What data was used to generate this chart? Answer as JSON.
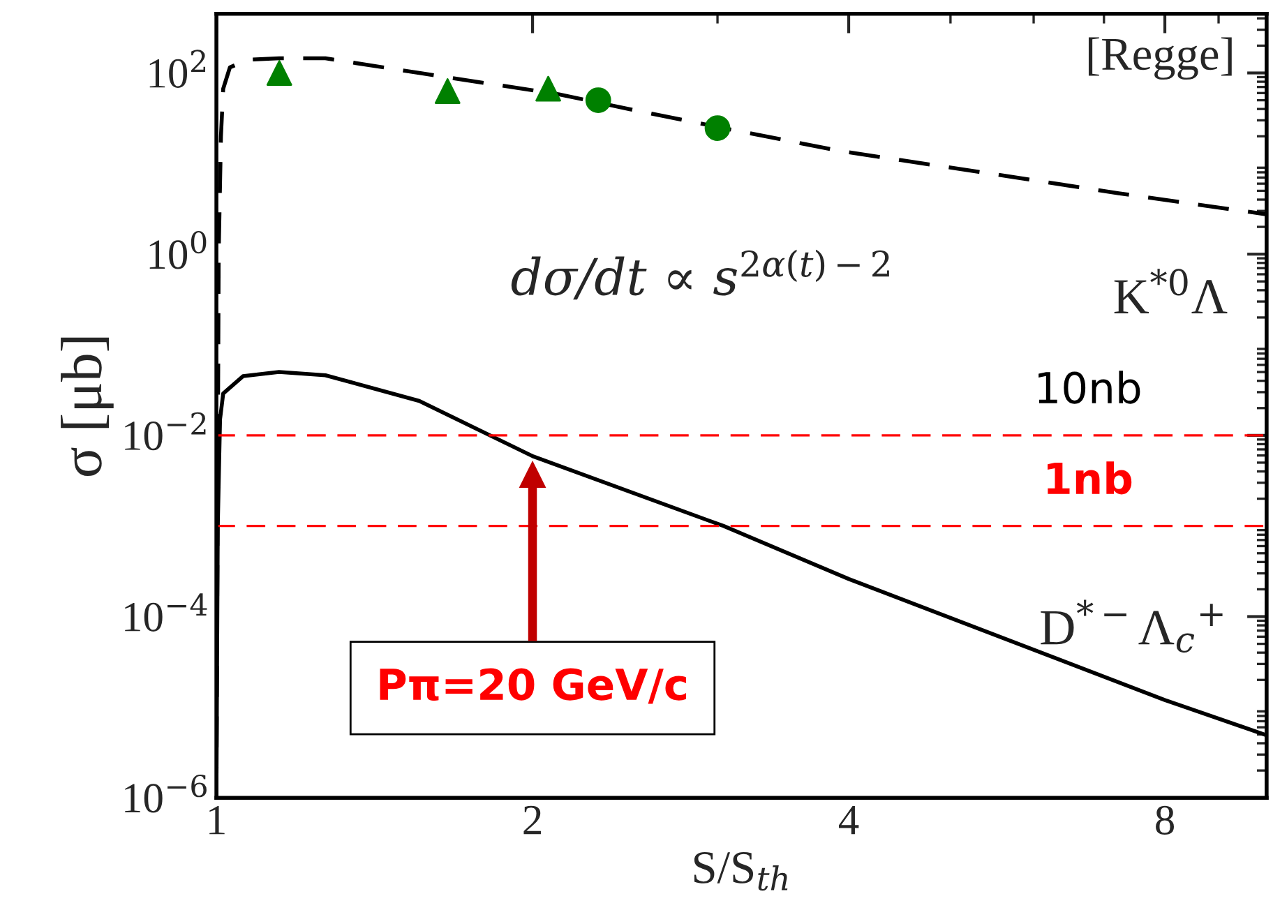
{
  "chart_data": {
    "type": "line",
    "xlabel": "S/S$_{th}$",
    "ylabel": "σ [μb]",
    "log": "xy",
    "grid": false,
    "legend": false,
    "xlim": [
      1,
      10
    ],
    "xticks": [
      1,
      2,
      4,
      8
    ],
    "ylim": [
      1e-06,
      450
    ],
    "yticks": [
      {
        "value": 1e-06,
        "label": "10$^{−6}$"
      },
      {
        "value": 0.0001,
        "label": "10$^{−4}$"
      },
      {
        "value": 0.01,
        "label": "10$^{−2}$"
      },
      {
        "value": 1,
        "label": "10$^{0}$"
      },
      {
        "value": 100,
        "label": "10$^{2}$"
      }
    ],
    "series": [
      {
        "name": "K$^{*0}$Λ",
        "color": "#000000",
        "line_style": "dashed",
        "marker": "none",
        "x": [
          1.0,
          1.005,
          1.01,
          1.015,
          1.03,
          1.07,
          1.148,
          1.27,
          1.56,
          2.12,
          2.47,
          3.02,
          3.92,
          5.32,
          7.23,
          10.0
        ],
        "values": [
          1e-06,
          1,
          20,
          67,
          115,
          140,
          145,
          145,
          100,
          58,
          40,
          25,
          13.8,
          8.1,
          4.7,
          2.75
        ]
      },
      {
        "name": "D$^{*−}$Λ$_{c}$$^{+}$",
        "color": "#000000",
        "line_style": "solid",
        "marker": "none",
        "x": [
          1.0,
          1.003,
          1.008,
          1.015,
          1.06,
          1.147,
          1.27,
          1.56,
          2.0,
          3.04,
          4.0,
          8.0,
          10.0
        ],
        "values": [
          1e-06,
          0.001,
          0.015,
          0.029,
          0.045,
          0.05,
          0.046,
          0.024,
          0.0059,
          0.001,
          0.00026,
          1.2e-05,
          4.9e-06
        ]
      },
      {
        "type": "scatter",
        "color": "#008000",
        "marker": "triangle",
        "x": [
          1.148,
          1.66,
          2.07
        ],
        "values": [
          100,
          63,
          67
        ]
      },
      {
        "type": "scatter",
        "color": "#008000",
        "marker": "circle",
        "x": [
          2.31,
          3.0
        ],
        "values": [
          50,
          24.6
        ]
      }
    ],
    "ref_lines": [
      {
        "axis": "y",
        "value": 0.01,
        "label": "10nb",
        "color": "#ff0000",
        "line_style": "dashed"
      },
      {
        "axis": "y",
        "value": 0.001,
        "label": "1nb",
        "color": "#ff0000",
        "line_style": "dashed"
      }
    ],
    "annotations": [
      "[Regge]",
      "dσ/dt ∝ s$^{2α(t)−2}$",
      "Pπ=20 GeV/c"
    ]
  }
}
